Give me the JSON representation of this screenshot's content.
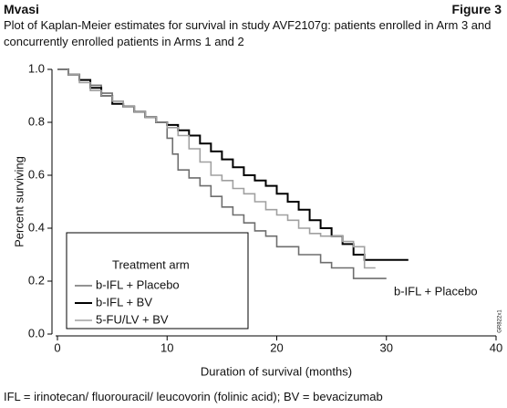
{
  "header": {
    "brand": "Mvasi",
    "figure": "Figure 3"
  },
  "footnote": "IFL = irinotecan/ fluorouracil/ leucovorin (folinic acid); BV = bevacizumab",
  "chart_data": {
    "type": "step",
    "title": "Plot of Kaplan-Meier estimates for survival in study AVF2107g: patients enrolled in Arm 3 and concurrently enrolled patients in Arms 1 and 2",
    "x_label": "Duration of survival (months)",
    "y_label": "Percent surviving",
    "annotation": "b-IFL + Placebo",
    "figure_code": "GR822x1",
    "legend_title": "Treatment arm",
    "legend": "bottom-left",
    "xlim": [
      0,
      40
    ],
    "xticks": [
      0,
      10,
      20,
      30,
      40
    ],
    "ylim": [
      0,
      1
    ],
    "yticks": [
      {
        "value": 0,
        "label": "0.0"
      },
      0.2,
      0.4,
      0.6,
      0.8,
      {
        "value": 1,
        "label": "1.0"
      }
    ],
    "series": [
      {
        "name": "b-IFL + Placebo",
        "color": "#6e6e6e",
        "x": [
          0,
          1,
          2,
          3,
          4,
          5,
          6,
          7,
          8,
          9,
          10,
          10.5,
          11,
          12,
          13,
          14,
          15,
          16,
          17,
          18,
          19,
          20,
          22,
          24,
          25,
          27,
          30
        ],
        "values": [
          1,
          0.98,
          0.96,
          0.94,
          0.91,
          0.88,
          0.86,
          0.84,
          0.82,
          0.8,
          0.74,
          0.68,
          0.62,
          0.59,
          0.56,
          0.52,
          0.48,
          0.45,
          0.42,
          0.39,
          0.37,
          0.33,
          0.3,
          0.27,
          0.25,
          0.21,
          0.21
        ]
      },
      {
        "name": "b-IFL + BV",
        "color": "#000000",
        "x": [
          0,
          1,
          2,
          3,
          4,
          5,
          6,
          7,
          8,
          9,
          10,
          11,
          12,
          13,
          14,
          15,
          16,
          17,
          18,
          19,
          20,
          21,
          22,
          23,
          24,
          25,
          26,
          27,
          28,
          32
        ],
        "values": [
          1,
          0.98,
          0.96,
          0.93,
          0.9,
          0.87,
          0.86,
          0.84,
          0.82,
          0.8,
          0.79,
          0.77,
          0.75,
          0.72,
          0.69,
          0.66,
          0.63,
          0.6,
          0.58,
          0.56,
          0.53,
          0.5,
          0.47,
          0.43,
          0.4,
          0.37,
          0.34,
          0.3,
          0.28,
          0.28
        ]
      },
      {
        "name": "5-FU/LV + BV",
        "color": "#a0a0a0",
        "x": [
          0,
          1,
          2,
          3,
          4,
          5,
          6,
          7,
          8,
          9,
          10,
          11,
          12,
          13,
          14,
          15,
          16,
          17,
          18,
          19,
          20,
          21,
          22,
          23,
          24,
          25,
          26,
          27,
          28,
          29
        ],
        "values": [
          1,
          0.98,
          0.95,
          0.92,
          0.9,
          0.88,
          0.86,
          0.84,
          0.82,
          0.8,
          0.78,
          0.75,
          0.7,
          0.65,
          0.6,
          0.58,
          0.55,
          0.53,
          0.5,
          0.47,
          0.45,
          0.43,
          0.4,
          0.38,
          0.37,
          0.37,
          0.35,
          0.33,
          0.25,
          0.25
        ]
      }
    ]
  }
}
